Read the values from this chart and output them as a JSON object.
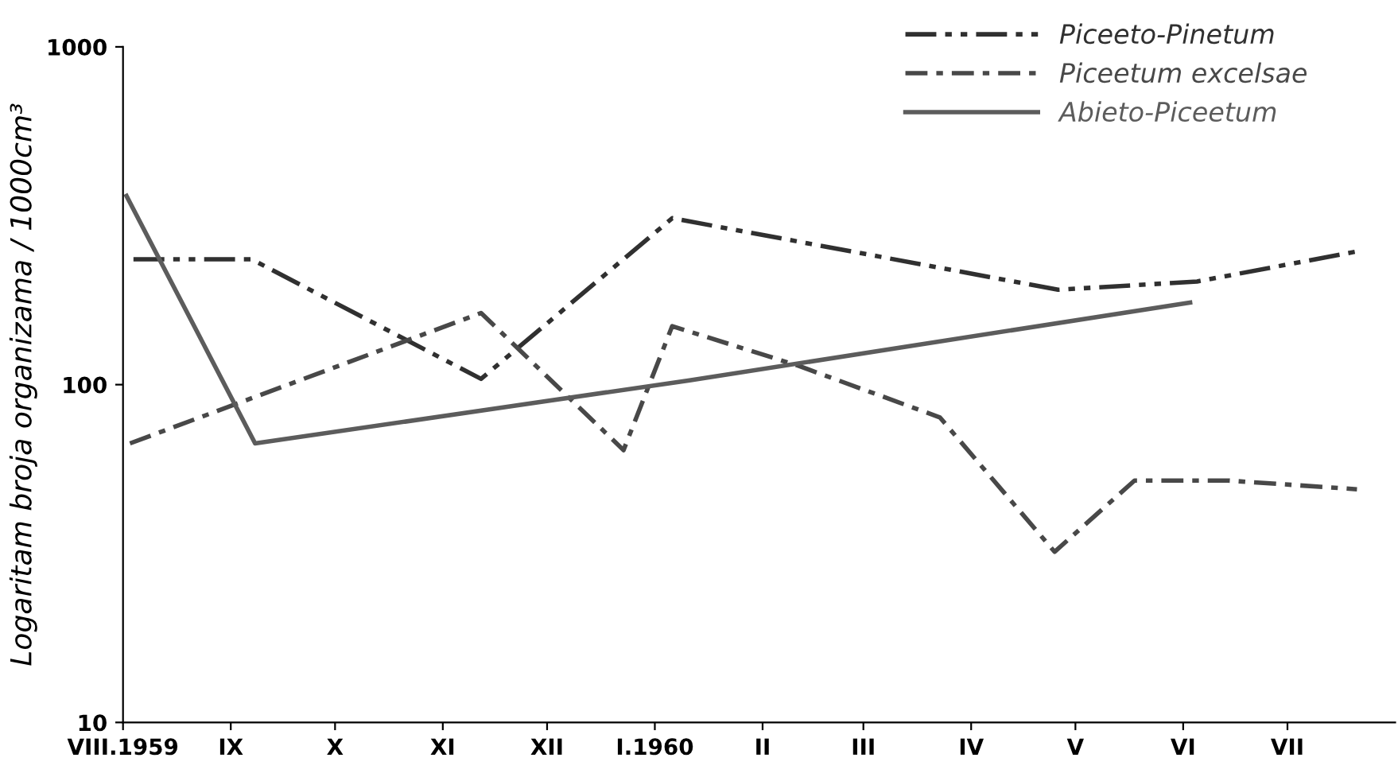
{
  "chart_data": {
    "type": "line",
    "ylabel": "Logaritam broja organizama / 1000cm³",
    "log": "y",
    "ylim": [
      10,
      1000
    ],
    "yticks": [
      10,
      100,
      1000
    ],
    "xlim": [
      "1959-08-01",
      "1960-08-01"
    ],
    "xticks": [
      {
        "value": "1959-08-01",
        "label": "VIII.1959"
      },
      {
        "value": "1959-09-01",
        "label": "IX"
      },
      {
        "value": "1959-10-01",
        "label": "X"
      },
      {
        "value": "1959-11-01",
        "label": "XI"
      },
      {
        "value": "1959-12-01",
        "label": "XII"
      },
      {
        "value": "1960-01-01",
        "label": "I.1960"
      },
      {
        "value": "1960-02-01",
        "label": "II"
      },
      {
        "value": "1960-03-01",
        "label": "III"
      },
      {
        "value": "1960-04-01",
        "label": "IV"
      },
      {
        "value": "1960-05-01",
        "label": "V"
      },
      {
        "value": "1960-06-01",
        "label": "VI"
      },
      {
        "value": "1960-07-01",
        "label": "VII"
      }
    ],
    "grid": false,
    "legend": "top right",
    "marker": "none",
    "series": [
      {
        "name": "Piceeto-Pinetum",
        "color": "#303030",
        "line_style": "dashed",
        "x": [
          "1959-08-04",
          "1959-09-07",
          "1959-11-12",
          "1960-01-06",
          "1960-04-26",
          "1960-06-05",
          "1960-07-21"
        ],
        "values": [
          235,
          235,
          104,
          311,
          191,
          202,
          248
        ]
      },
      {
        "name": "Piceetum excelsae",
        "color": "#484848",
        "line_style": "dotted",
        "x": [
          "1959-08-03",
          "1959-11-12",
          "1959-12-23",
          "1960-01-06",
          "1960-02-11",
          "1960-03-23",
          "1960-04-25",
          "1960-05-18",
          "1960-06-14",
          "1960-07-21"
        ],
        "values": [
          67,
          163,
          64,
          149,
          114,
          80,
          32,
          52,
          52,
          49
        ]
      },
      {
        "name": "Abieto-Piceetum",
        "color": "#5c5c5c",
        "line_style": "solid",
        "x": [
          "1959-08-02",
          "1959-09-08",
          "1960-01-11",
          "1960-06-03"
        ],
        "values": [
          362,
          67,
          103,
          175
        ]
      }
    ]
  }
}
